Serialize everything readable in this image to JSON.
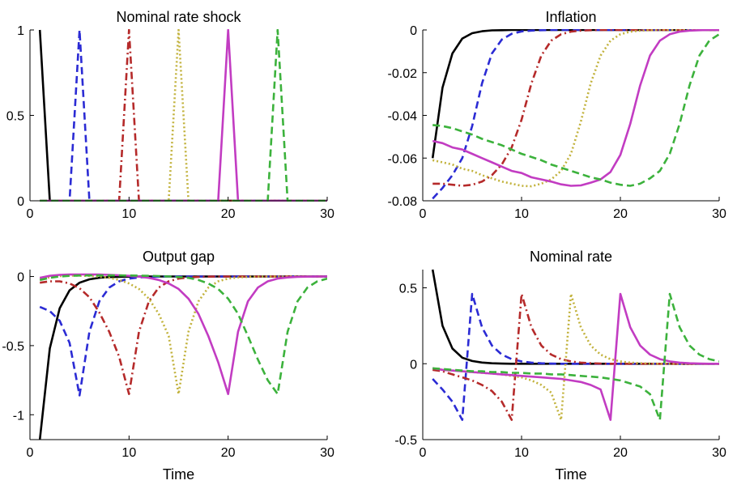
{
  "colors": {
    "axis": "#000000",
    "series": [
      "#000000",
      "#2b2bd4",
      "#b52a2a",
      "#c2b23c",
      "#c23cc2",
      "#3cb23c"
    ]
  },
  "series_styles": [
    "solid",
    "dashed",
    "dashdot",
    "dotted",
    "solid",
    "dashed"
  ],
  "chart_data": [
    {
      "type": "line",
      "title": "Nominal rate shock",
      "xlabel": "",
      "ylabel": "",
      "xlim": [
        0,
        30
      ],
      "ylim": [
        0,
        1
      ],
      "xticks": [
        "0",
        "10",
        "20",
        "30"
      ],
      "yticks": [
        "0",
        "0.5",
        "1"
      ],
      "x": [
        1,
        2,
        3,
        4,
        5,
        6,
        7,
        8,
        9,
        10,
        11,
        12,
        13,
        14,
        15,
        16,
        17,
        18,
        19,
        20,
        21,
        22,
        23,
        24,
        25,
        26,
        27,
        28,
        29,
        30
      ],
      "series": [
        {
          "values": [
            1,
            0,
            0,
            0,
            0,
            0,
            0,
            0,
            0,
            0,
            0,
            0,
            0,
            0,
            0,
            0,
            0,
            0,
            0,
            0,
            0,
            0,
            0,
            0,
            0,
            0,
            0,
            0,
            0,
            0
          ]
        },
        {
          "values": [
            0,
            0,
            0,
            0,
            1,
            0,
            0,
            0,
            0,
            0,
            0,
            0,
            0,
            0,
            0,
            0,
            0,
            0,
            0,
            0,
            0,
            0,
            0,
            0,
            0,
            0,
            0,
            0,
            0,
            0
          ]
        },
        {
          "values": [
            0,
            0,
            0,
            0,
            0,
            0,
            0,
            0,
            0,
            1,
            0,
            0,
            0,
            0,
            0,
            0,
            0,
            0,
            0,
            0,
            0,
            0,
            0,
            0,
            0,
            0,
            0,
            0,
            0,
            0
          ]
        },
        {
          "values": [
            0,
            0,
            0,
            0,
            0,
            0,
            0,
            0,
            0,
            0,
            0,
            0,
            0,
            0,
            1,
            0,
            0,
            0,
            0,
            0,
            0,
            0,
            0,
            0,
            0,
            0,
            0,
            0,
            0,
            0
          ]
        },
        {
          "values": [
            0,
            0,
            0,
            0,
            0,
            0,
            0,
            0,
            0,
            0,
            0,
            0,
            0,
            0,
            0,
            0,
            0,
            0,
            0,
            1,
            0,
            0,
            0,
            0,
            0,
            0,
            0,
            0,
            0,
            0
          ]
        },
        {
          "values": [
            0,
            0,
            0,
            0,
            0,
            0,
            0,
            0,
            0,
            0,
            0,
            0,
            0,
            0,
            0,
            0,
            0,
            0,
            0,
            0,
            0,
            0,
            0,
            0,
            1,
            0,
            0,
            0,
            0,
            0
          ]
        }
      ]
    },
    {
      "type": "line",
      "title": "Inflation",
      "xlabel": "",
      "ylabel": "",
      "xlim": [
        0,
        30
      ],
      "ylim": [
        -0.08,
        0
      ],
      "xticks": [
        "0",
        "10",
        "20",
        "30"
      ],
      "yticks": [
        "0",
        "-0.02",
        "-0.04",
        "-0.06",
        "-0.08"
      ],
      "x": [
        1,
        2,
        3,
        4,
        5,
        6,
        7,
        8,
        9,
        10,
        11,
        12,
        13,
        14,
        15,
        16,
        17,
        18,
        19,
        20,
        21,
        22,
        23,
        24,
        25,
        26,
        27,
        28,
        29,
        30
      ],
      "series": [
        {
          "values": [
            -0.06,
            -0.027,
            -0.011,
            -0.004,
            -0.0015,
            -0.0006,
            -0.0002,
            -0.0001,
            0,
            0,
            0,
            0,
            0,
            0,
            0,
            0,
            0,
            0,
            0,
            0,
            0,
            0,
            0,
            0,
            0,
            0,
            0,
            0,
            0,
            0
          ]
        },
        {
          "values": [
            -0.079,
            -0.074,
            -0.068,
            -0.06,
            -0.045,
            -0.025,
            -0.011,
            -0.0045,
            -0.0018,
            -0.0007,
            -0.0003,
            -0.0001,
            0,
            0,
            0,
            0,
            0,
            0,
            0,
            0,
            0,
            0,
            0,
            0,
            0,
            0,
            0,
            0,
            0,
            0
          ]
        },
        {
          "values": [
            -0.072,
            -0.072,
            -0.0725,
            -0.073,
            -0.0725,
            -0.071,
            -0.068,
            -0.063,
            -0.055,
            -0.042,
            -0.025,
            -0.012,
            -0.005,
            -0.002,
            -0.0008,
            -0.0003,
            -0.0001,
            0,
            0,
            0,
            0,
            0,
            0,
            0,
            0,
            0,
            0,
            0,
            0,
            0
          ]
        },
        {
          "values": [
            -0.061,
            -0.062,
            -0.063,
            -0.065,
            -0.066,
            -0.068,
            -0.0695,
            -0.071,
            -0.072,
            -0.073,
            -0.0732,
            -0.072,
            -0.07,
            -0.066,
            -0.058,
            -0.043,
            -0.025,
            -0.012,
            -0.005,
            -0.002,
            -0.0008,
            -0.0003,
            -0.0001,
            0,
            0,
            0,
            0,
            0,
            0,
            0
          ]
        },
        {
          "values": [
            -0.052,
            -0.053,
            -0.055,
            -0.056,
            -0.058,
            -0.06,
            -0.062,
            -0.064,
            -0.066,
            -0.067,
            -0.069,
            -0.07,
            -0.071,
            -0.0723,
            -0.073,
            -0.0728,
            -0.0715,
            -0.07,
            -0.0665,
            -0.0585,
            -0.044,
            -0.026,
            -0.012,
            -0.005,
            -0.002,
            -0.0008,
            -0.0003,
            -0.0001,
            0,
            0
          ]
        },
        {
          "values": [
            -0.0445,
            -0.045,
            -0.046,
            -0.0475,
            -0.049,
            -0.051,
            -0.0525,
            -0.054,
            -0.056,
            -0.058,
            -0.0595,
            -0.061,
            -0.063,
            -0.0645,
            -0.066,
            -0.0675,
            -0.069,
            -0.07,
            -0.0715,
            -0.0725,
            -0.073,
            -0.072,
            -0.0695,
            -0.066,
            -0.058,
            -0.044,
            -0.026,
            -0.012,
            -0.005,
            -0.002
          ]
        }
      ]
    },
    {
      "type": "line",
      "title": "Output gap",
      "xlabel": "Time",
      "ylabel": "",
      "xlim": [
        0,
        30
      ],
      "ylim": [
        -1.18,
        0.05
      ],
      "xticks": [
        "0",
        "10",
        "20",
        "30"
      ],
      "yticks": [
        "0",
        "-0.5",
        "-1"
      ],
      "x": [
        1,
        2,
        3,
        4,
        5,
        6,
        7,
        8,
        9,
        10,
        11,
        12,
        13,
        14,
        15,
        16,
        17,
        18,
        19,
        20,
        21,
        22,
        23,
        24,
        25,
        26,
        27,
        28,
        29,
        30
      ],
      "series": [
        {
          "values": [
            -1.18,
            -0.52,
            -0.23,
            -0.1,
            -0.045,
            -0.02,
            -0.009,
            -0.004,
            -0.002,
            -0.001,
            0,
            0,
            0,
            0,
            0,
            0,
            0,
            0,
            0,
            0,
            0,
            0,
            0,
            0,
            0,
            0,
            0,
            0,
            0,
            0
          ]
        },
        {
          "values": [
            -0.22,
            -0.25,
            -0.32,
            -0.48,
            -0.86,
            -0.4,
            -0.18,
            -0.08,
            -0.035,
            -0.015,
            -0.007,
            -0.003,
            -0.001,
            0,
            0,
            0,
            0,
            0,
            0,
            0,
            0,
            0,
            0,
            0,
            0,
            0,
            0,
            0,
            0,
            0
          ]
        },
        {
          "values": [
            -0.045,
            -0.035,
            -0.035,
            -0.05,
            -0.085,
            -0.15,
            -0.26,
            -0.4,
            -0.58,
            -0.85,
            -0.4,
            -0.18,
            -0.08,
            -0.035,
            -0.015,
            -0.007,
            -0.003,
            -0.001,
            0,
            0,
            0,
            0,
            0,
            0,
            0,
            0,
            0,
            0,
            0,
            0
          ]
        },
        {
          "values": [
            -0.02,
            -0.005,
            0.003,
            0.006,
            0.006,
            0.004,
            -0.001,
            -0.01,
            -0.025,
            -0.05,
            -0.09,
            -0.16,
            -0.27,
            -0.43,
            -0.85,
            -0.4,
            -0.18,
            -0.08,
            -0.035,
            -0.015,
            -0.007,
            -0.003,
            -0.001,
            0,
            0,
            0,
            0,
            0,
            0,
            0
          ]
        },
        {
          "values": [
            -0.01,
            0.005,
            0.012,
            0.014,
            0.015,
            0.015,
            0.014,
            0.012,
            0.009,
            0.005,
            -0.001,
            -0.01,
            -0.025,
            -0.05,
            -0.09,
            -0.16,
            -0.27,
            -0.43,
            -0.62,
            -0.85,
            -0.4,
            -0.18,
            -0.08,
            -0.035,
            -0.015,
            -0.007,
            -0.003,
            -0.001,
            0,
            0
          ]
        },
        {
          "values": [
            -0.025,
            -0.01,
            0,
            0.005,
            0.007,
            0.008,
            0.008,
            0.008,
            0.008,
            0.007,
            0.006,
            0.005,
            0.003,
            0,
            -0.004,
            -0.01,
            -0.025,
            -0.05,
            -0.09,
            -0.16,
            -0.27,
            -0.43,
            -0.6,
            -0.75,
            -0.85,
            -0.4,
            -0.18,
            -0.08,
            -0.035,
            -0.015
          ]
        }
      ]
    },
    {
      "type": "line",
      "title": "Nominal rate",
      "xlabel": "Time",
      "ylabel": "",
      "xlim": [
        0,
        30
      ],
      "ylim": [
        -0.5,
        0.62
      ],
      "xticks": [
        "0",
        "10",
        "20",
        "30"
      ],
      "yticks": [
        "0.5",
        "0",
        "-0.5"
      ],
      "x": [
        1,
        2,
        3,
        4,
        5,
        6,
        7,
        8,
        9,
        10,
        11,
        12,
        13,
        14,
        15,
        16,
        17,
        18,
        19,
        20,
        21,
        22,
        23,
        24,
        25,
        26,
        27,
        28,
        29,
        30
      ],
      "series": [
        {
          "values": [
            0.62,
            0.25,
            0.1,
            0.04,
            0.018,
            0.008,
            0.003,
            0.001,
            0,
            0,
            0,
            0,
            0,
            0,
            0,
            0,
            0,
            0,
            0,
            0,
            0,
            0,
            0,
            0,
            0,
            0,
            0,
            0,
            0,
            0
          ]
        },
        {
          "values": [
            -0.1,
            -0.17,
            -0.25,
            -0.37,
            0.46,
            0.24,
            0.12,
            0.06,
            0.03,
            0.015,
            0.007,
            0.003,
            0.001,
            0,
            0,
            0,
            0,
            0,
            0,
            0,
            0,
            0,
            0,
            0,
            0,
            0,
            0,
            0,
            0,
            0
          ]
        },
        {
          "values": [
            -0.04,
            -0.05,
            -0.07,
            -0.09,
            -0.11,
            -0.14,
            -0.18,
            -0.25,
            -0.37,
            0.46,
            0.24,
            0.12,
            0.06,
            0.03,
            0.015,
            0.007,
            0.003,
            0.001,
            0,
            0,
            0,
            0,
            0,
            0,
            0,
            0,
            0,
            0,
            0,
            0
          ]
        },
        {
          "values": [
            -0.03,
            -0.04,
            -0.045,
            -0.05,
            -0.055,
            -0.06,
            -0.065,
            -0.07,
            -0.08,
            -0.09,
            -0.11,
            -0.14,
            -0.19,
            -0.37,
            0.46,
            0.24,
            0.12,
            0.06,
            0.03,
            0.015,
            0.007,
            0.003,
            0.001,
            0,
            0,
            0,
            0,
            0,
            0,
            0
          ]
        },
        {
          "values": [
            -0.03,
            -0.04,
            -0.045,
            -0.05,
            -0.055,
            -0.06,
            -0.065,
            -0.07,
            -0.075,
            -0.08,
            -0.085,
            -0.09,
            -0.095,
            -0.1,
            -0.11,
            -0.12,
            -0.14,
            -0.17,
            -0.37,
            0.46,
            0.24,
            0.12,
            0.06,
            0.03,
            0.015,
            0.007,
            0.003,
            0.001,
            0,
            0
          ]
        },
        {
          "values": [
            -0.03,
            -0.035,
            -0.04,
            -0.045,
            -0.05,
            -0.05,
            -0.055,
            -0.055,
            -0.06,
            -0.06,
            -0.065,
            -0.065,
            -0.07,
            -0.07,
            -0.075,
            -0.08,
            -0.085,
            -0.09,
            -0.1,
            -0.11,
            -0.13,
            -0.15,
            -0.2,
            -0.37,
            0.46,
            0.24,
            0.12,
            0.06,
            0.03,
            0.015
          ]
        }
      ]
    }
  ]
}
